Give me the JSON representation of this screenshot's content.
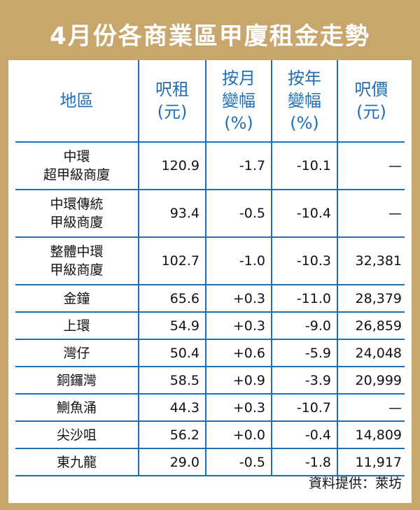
{
  "title": "4月份各商業區甲廈租金走勢",
  "headers": {
    "district": "地區",
    "rent_line1": "呎租",
    "rent_line2": "(元)",
    "mom_line1": "按月",
    "mom_line2": "變幅",
    "mom_line3": "(%)",
    "yoy_line1": "按年",
    "yoy_line2": "變幅",
    "yoy_line3": "(%)",
    "price_line1": "呎價",
    "price_line2": "(元)"
  },
  "rows": [
    {
      "district_line1": "中環",
      "district_line2": "超甲級商廈",
      "rent": "120.9",
      "mom": "-1.7",
      "yoy": "-10.1",
      "price": "—"
    },
    {
      "district_line1": "中環傳統",
      "district_line2": "甲級商廈",
      "rent": "93.4",
      "mom": "-0.5",
      "yoy": "-10.4",
      "price": "—"
    },
    {
      "district_line1": "整體中環",
      "district_line2": "甲級商廈",
      "rent": "102.7",
      "mom": "-1.0",
      "yoy": "-10.3",
      "price": "32,381"
    },
    {
      "district_line1": "金鐘",
      "district_line2": "",
      "rent": "65.6",
      "mom": "+0.3",
      "yoy": "-11.0",
      "price": "28,379"
    },
    {
      "district_line1": "上環",
      "district_line2": "",
      "rent": "54.9",
      "mom": "+0.3",
      "yoy": "-9.0",
      "price": "26,859"
    },
    {
      "district_line1": "灣仔",
      "district_line2": "",
      "rent": "50.4",
      "mom": "+0.6",
      "yoy": "-5.9",
      "price": "24,048"
    },
    {
      "district_line1": "銅鑼灣",
      "district_line2": "",
      "rent": "58.5",
      "mom": "+0.9",
      "yoy": "-3.9",
      "price": "20,999"
    },
    {
      "district_line1": "鰂魚涌",
      "district_line2": "",
      "rent": "44.3",
      "mom": "+0.3",
      "yoy": "-10.7",
      "price": "—"
    },
    {
      "district_line1": "尖沙咀",
      "district_line2": "",
      "rent": "56.2",
      "mom": "+0.0",
      "yoy": "-0.4",
      "price": "14,809"
    },
    {
      "district_line1": "東九龍",
      "district_line2": "",
      "rent": "29.0",
      "mom": "-0.5",
      "yoy": "-1.8",
      "price": "11,917"
    }
  ],
  "source": "資料提供：萊坊",
  "colors": {
    "frame": "#c8a76c",
    "header_text": "#1f6fb8",
    "grid": "#1f6fb8"
  }
}
